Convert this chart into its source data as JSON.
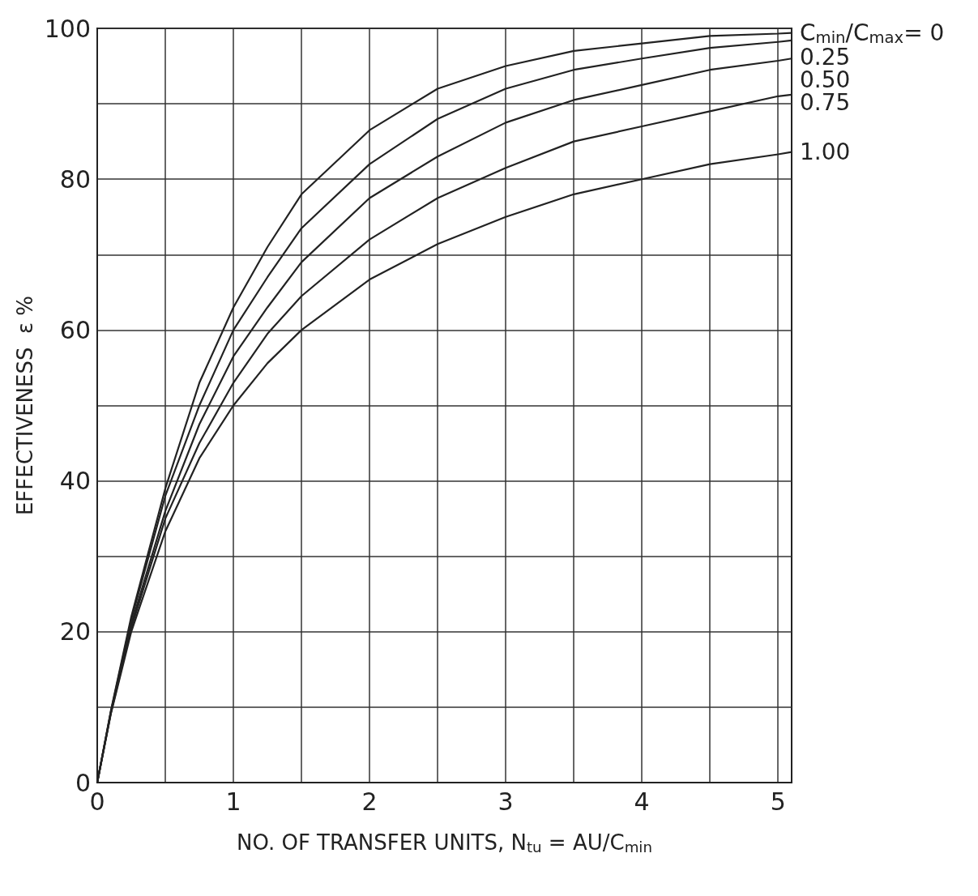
{
  "chart_data": {
    "type": "line",
    "xlabel": "NO. OF TRANSFER UNITS, N$_{tu}$ = AU/C$_{min}$",
    "ylabel": "EFFECTIVENESS  ε %",
    "x": [
      0,
      0.1,
      0.25,
      0.5,
      0.75,
      1,
      1.25,
      1.5,
      2,
      2.5,
      3,
      3.5,
      4,
      4.5,
      5,
      5.1
    ],
    "series": [
      {
        "name": "C$_{min}$/C$_{max}$= 0",
        "color": "#222222",
        "values": [
          0,
          9.5,
          22,
          39,
          53,
          63,
          71,
          78,
          86.5,
          92,
          95,
          97,
          98,
          99,
          99.3,
          99.4
        ]
      },
      {
        "name": "0.25",
        "color": "#222222",
        "values": [
          0,
          9.4,
          21.6,
          38,
          50,
          60,
          67,
          73.5,
          82,
          88,
          92,
          94.5,
          96,
          97.4,
          98.2,
          98.4
        ]
      },
      {
        "name": "0.50",
        "color": "#222222",
        "values": [
          0,
          9.3,
          21,
          36,
          47.5,
          56.5,
          63,
          69,
          77.5,
          83,
          87.5,
          90.5,
          92.5,
          94.5,
          95.7,
          96
        ]
      },
      {
        "name": "0.75",
        "color": "#222222",
        "values": [
          0,
          9.2,
          20.5,
          35,
          45,
          53,
          59.5,
          64.5,
          72,
          77.5,
          81.5,
          85,
          87,
          89,
          91,
          91.2
        ]
      },
      {
        "name": "1.00",
        "color": "#222222",
        "values": [
          0,
          9.1,
          20,
          33.3,
          43,
          50,
          55.6,
          60,
          66.7,
          71.4,
          75,
          78,
          80,
          82,
          83.3,
          83.6
        ]
      }
    ],
    "xlim": [
      0,
      5.1
    ],
    "xticks": [
      0,
      {
        "value": 0.5,
        "label": null
      },
      1,
      {
        "value": 1.5,
        "label": null
      },
      2,
      {
        "value": 2.5,
        "label": null
      },
      3,
      {
        "value": 3.5,
        "label": null
      },
      4,
      {
        "value": 4.5,
        "label": null
      },
      5
    ],
    "ylim": [
      0,
      100
    ],
    "yticks": [
      0,
      {
        "value": 10,
        "label": null
      },
      20,
      {
        "value": 30,
        "label": null
      },
      40,
      {
        "value": 50,
        "label": null
      },
      60,
      {
        "value": 70,
        "label": null
      },
      80,
      {
        "value": 90,
        "label": null
      },
      100
    ],
    "grid": true,
    "legend": false,
    "marker": "none",
    "line_style": "solid"
  }
}
